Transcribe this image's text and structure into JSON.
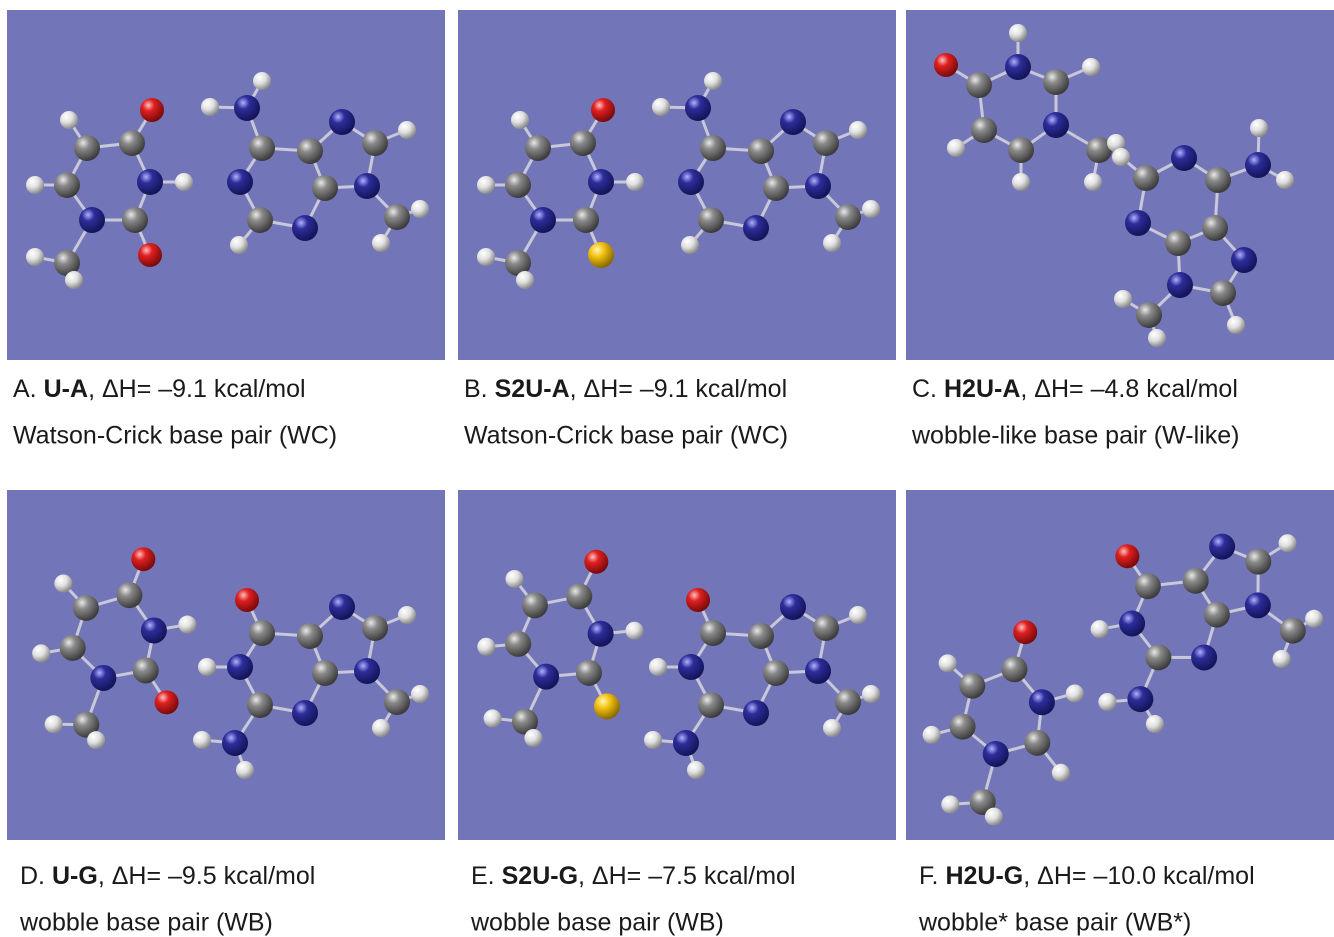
{
  "panels": [
    {
      "label": "A.",
      "name": "U-A",
      "energy": ", ΔH= –9.1 kcal/mol",
      "description": "Watson-Crick base pair (WC)"
    },
    {
      "label": "B.",
      "name": "S2U-A",
      "energy": ", ΔH= –9.1 kcal/mol",
      "description": "Watson-Crick base pair (WC)"
    },
    {
      "label": "C.",
      "name": "H2U-A",
      "energy": ", ΔH= –4.8 kcal/mol",
      "description": "wobble-like base pair (W-like)"
    },
    {
      "label": "D.",
      "name": "U-G",
      "energy": ", ΔH= –9.5 kcal/mol",
      "description": "wobble base pair (WB)"
    },
    {
      "label": "E.",
      "name": "S2U-G",
      "energy": ", ΔH= –7.5 kcal/mol",
      "description": "wobble base pair (WB)"
    },
    {
      "label": "F.",
      "name": "H2U-G",
      "energy": ", ΔH= –10.0 kcal/mol",
      "description": "wobble* base pair (WB*)"
    }
  ]
}
